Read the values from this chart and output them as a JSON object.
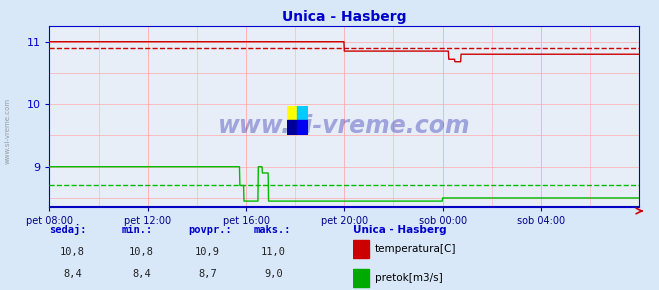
{
  "title": "Unica - Hasberg",
  "title_color": "#0000cc",
  "bg_color": "#d8e8f8",
  "plot_bg_color": "#e8eef8",
  "ylim": [
    8.35,
    11.25
  ],
  "yticks": [
    9,
    10,
    11
  ],
  "xlabel_color": "#000088",
  "xtick_labels": [
    "pet 08:00",
    "pet 12:00",
    "pet 16:00",
    "pet 20:00",
    "sob 00:00",
    "sob 04:00"
  ],
  "xtick_positions": [
    0,
    240,
    480,
    720,
    960,
    1200
  ],
  "total_points": 1441,
  "watermark": "www.si-vreme.com",
  "watermark_color": "#1a1aaa",
  "watermark_alpha": 0.35,
  "legend_title": "Unica - Hasberg",
  "legend_title_color": "#0000cc",
  "legend_items": [
    "temperatura[C]",
    "pretok[m3/s]"
  ],
  "legend_colors": [
    "#cc0000",
    "#00aa00"
  ],
  "table_headers": [
    "sedaj:",
    "min.:",
    "povpr.:",
    "maks.:"
  ],
  "table_values": [
    [
      "10,8",
      "10,8",
      "10,9",
      "11,0"
    ],
    [
      "8,4",
      "8,4",
      "8,7",
      "9,0"
    ]
  ],
  "temp_color": "#cc0000",
  "flow_color": "#00bb00",
  "temp_avg": 10.9,
  "flow_avg": 8.7,
  "axis_color": "#0000cc",
  "arrow_color": "#cc0000"
}
